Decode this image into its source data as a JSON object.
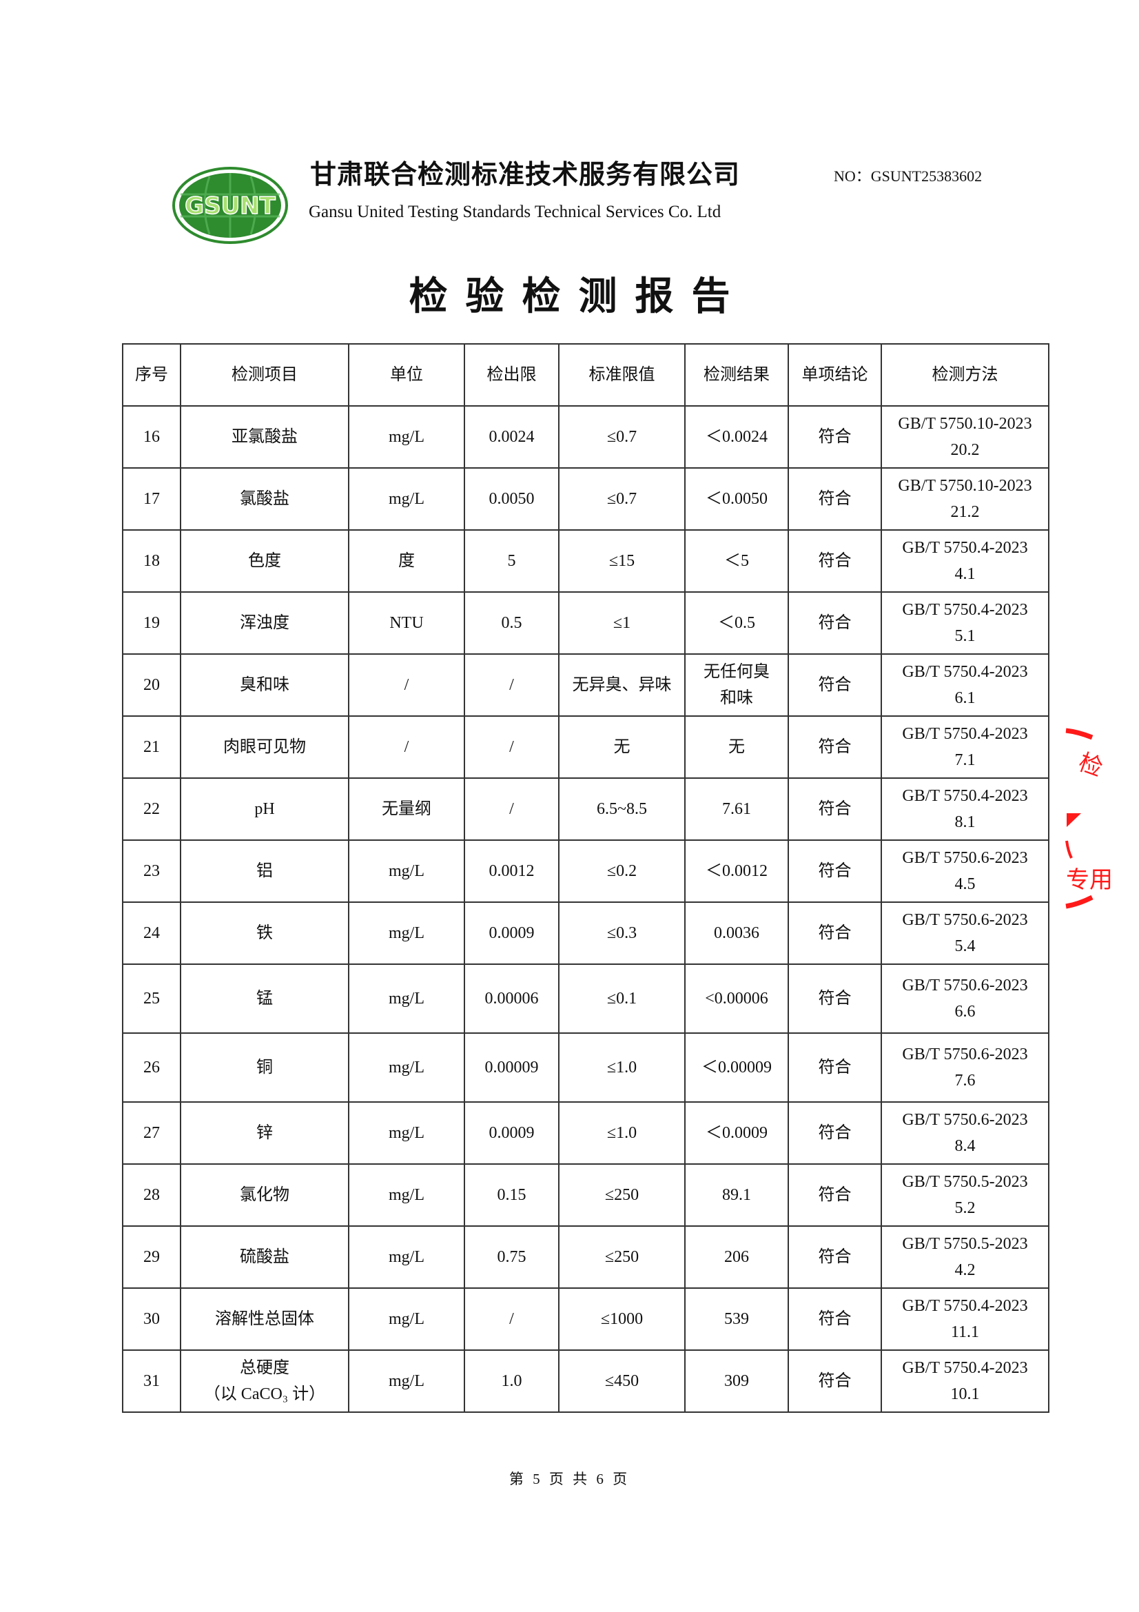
{
  "header": {
    "logo_text": "GSUNT",
    "company_cn": "甘肃联合检测标准技术服务有限公司",
    "company_en": "Gansu United Testing Standards Technical Services Co. Ltd",
    "report_no": "NO：GSUNT25383602",
    "title": "检验检测报告"
  },
  "colors": {
    "logo_green": "#2e8b2e",
    "stamp_red": "#ff1a1a"
  },
  "table": {
    "columns": [
      "序号",
      "检测项目",
      "单位",
      "检出限",
      "标准限值",
      "检测结果",
      "单项结论",
      "检测方法"
    ],
    "rows": [
      [
        "16",
        "亚氯酸盐",
        "mg/L",
        "0.0024",
        "≤0.7",
        "＜0.0024",
        "符合",
        "GB/T 5750.10-2023\n20.2"
      ],
      [
        "17",
        "氯酸盐",
        "mg/L",
        "0.0050",
        "≤0.7",
        "＜0.0050",
        "符合",
        "GB/T 5750.10-2023\n21.2"
      ],
      [
        "18",
        "色度",
        "度",
        "5",
        "≤15",
        "＜5",
        "符合",
        "GB/T 5750.4-2023\n4.1"
      ],
      [
        "19",
        "浑浊度",
        "NTU",
        "0.5",
        "≤1",
        "＜0.5",
        "符合",
        "GB/T 5750.4-2023\n5.1"
      ],
      [
        "20",
        "臭和味",
        "/",
        "/",
        "无异臭、异味",
        "无任何臭\n和味",
        "符合",
        "GB/T 5750.4-2023\n6.1"
      ],
      [
        "21",
        "肉眼可见物",
        "/",
        "/",
        "无",
        "无",
        "符合",
        "GB/T 5750.4-2023\n7.1"
      ],
      [
        "22",
        "pH",
        "无量纲",
        "/",
        "6.5~8.5",
        "7.61",
        "符合",
        "GB/T 5750.4-2023\n8.1"
      ],
      [
        "23",
        "铝",
        "mg/L",
        "0.0012",
        "≤0.2",
        "＜0.0012",
        "符合",
        "GB/T 5750.6-2023\n4.5"
      ],
      [
        "24",
        "铁",
        "mg/L",
        "0.0009",
        "≤0.3",
        "0.0036",
        "符合",
        "GB/T 5750.6-2023\n5.4"
      ],
      [
        "25",
        "锰",
        "mg/L",
        "0.00006",
        "≤0.1",
        "<0.00006",
        "符合",
        "GB/T 5750.6-2023\n6.6"
      ],
      [
        "26",
        "铜",
        "mg/L",
        "0.00009",
        "≤1.0",
        "＜0.00009",
        "符合",
        "GB/T 5750.6-2023\n7.6"
      ],
      [
        "27",
        "锌",
        "mg/L",
        "0.0009",
        "≤1.0",
        "＜0.0009",
        "符合",
        "GB/T 5750.6-2023\n8.4"
      ],
      [
        "28",
        "氯化物",
        "mg/L",
        "0.15",
        "≤250",
        "89.1",
        "符合",
        "GB/T 5750.5-2023\n5.2"
      ],
      [
        "29",
        "硫酸盐",
        "mg/L",
        "0.75",
        "≤250",
        "206",
        "符合",
        "GB/T 5750.5-2023\n4.2"
      ],
      [
        "30",
        "溶解性总固体",
        "mg/L",
        "/",
        "≤1000",
        "539",
        "符合",
        "GB/T 5750.4-2023\n11.1"
      ],
      [
        "31",
        "总硬度\n（以 CaCO₃ 计）",
        "mg/L",
        "1.0",
        "≤450",
        "309",
        "符合",
        "GB/T 5750.4-2023\n10.1"
      ]
    ]
  },
  "stamp": {
    "text_fragments": "检 专用"
  },
  "footer": {
    "page": "第 5 页 共 6 页"
  }
}
